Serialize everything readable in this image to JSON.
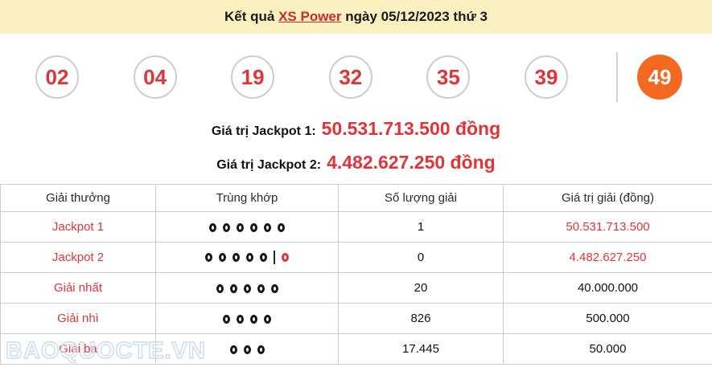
{
  "header": {
    "title_prefix": "Kết quả ",
    "title_link": "XS Power",
    "title_suffix": " ngày 05/12/2023 thứ 3"
  },
  "balls": {
    "numbers": [
      "02",
      "04",
      "19",
      "32",
      "35",
      "39"
    ],
    "power_number": "49"
  },
  "jackpot1": {
    "label": "Giá trị Jackpot 1:",
    "value": "50.531.713.500 đồng"
  },
  "jackpot2": {
    "label": "Giá trị Jackpot 2:",
    "value": "4.482.627.250 đồng"
  },
  "table": {
    "headers": [
      "Giải thưởng",
      "Trùng khớp",
      "Số lượng giải",
      "Giá trị giải (đồng)"
    ],
    "rows": [
      {
        "prize": "Jackpot 1",
        "match_main": 6,
        "match_power": 0,
        "count": "1",
        "value": "50.531.713.500",
        "value_red": true
      },
      {
        "prize": "Jackpot 2",
        "match_main": 5,
        "match_power": 1,
        "count": "0",
        "value": "4.482.627.250",
        "value_red": true
      },
      {
        "prize": "Giải nhất",
        "match_main": 5,
        "match_power": 0,
        "count": "20",
        "value": "40.000.000",
        "value_red": false
      },
      {
        "prize": "Giải nhì",
        "match_main": 4,
        "match_power": 0,
        "count": "826",
        "value": "500.000",
        "value_red": false
      },
      {
        "prize": "Giải ba",
        "match_main": 3,
        "match_power": 0,
        "count": "17.445",
        "value": "50.000",
        "value_red": false
      }
    ]
  },
  "watermark": "BAOQUOCTE.VN",
  "colors": {
    "accent_red": "#e13438",
    "dark_red": "#cc2a2e",
    "power_orange": "#f2691f",
    "bar_yellow": "#fbf0bf",
    "border_gray": "#cccccc",
    "watermark_blue": "#c7dcee"
  }
}
